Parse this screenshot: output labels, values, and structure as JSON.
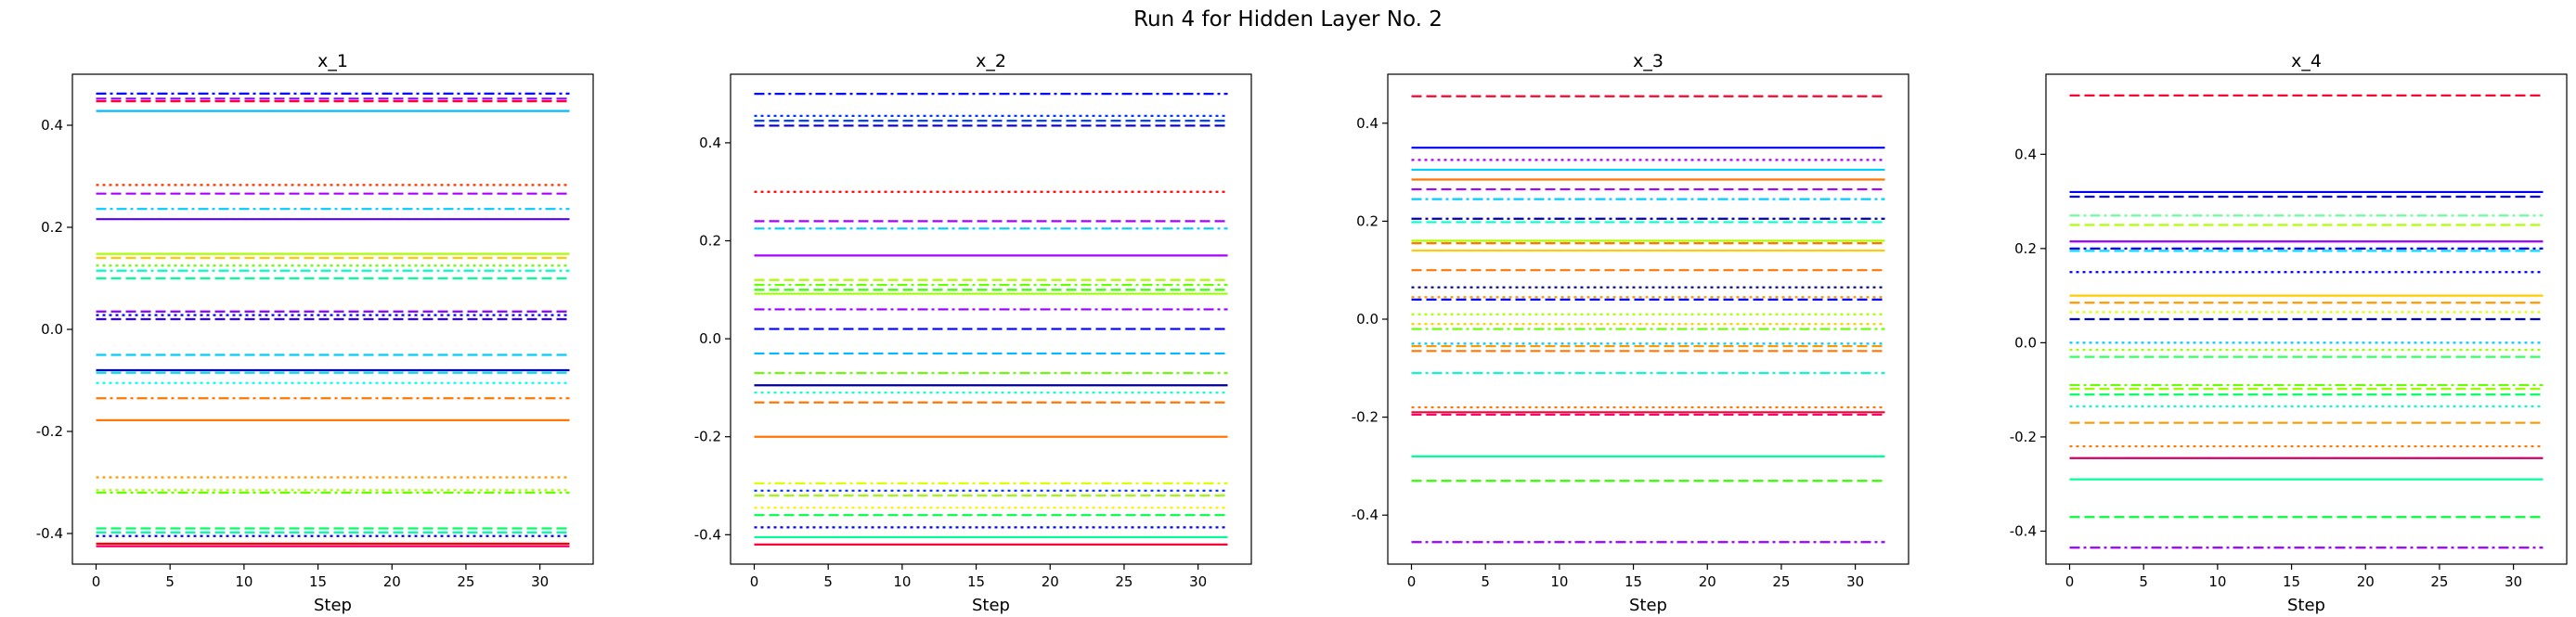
{
  "figure": {
    "suptitle": "Run 4 for Hidden Layer No. 2"
  },
  "chart_data": [
    {
      "type": "line",
      "title": "x_1",
      "xlabel": "Step",
      "ylabel": "",
      "xlim": [
        -1.6,
        33.6
      ],
      "ylim": [
        -0.46,
        0.5
      ],
      "x_ticks": [
        0,
        5,
        10,
        15,
        20,
        25,
        30
      ],
      "y_ticks": [
        -0.4,
        -0.2,
        0.0,
        0.2,
        0.4
      ],
      "x_range": [
        0,
        32
      ],
      "grid": false,
      "series": [
        {
          "y": 0.462,
          "color": "#0000ff",
          "dash": "dashdot"
        },
        {
          "y": 0.452,
          "color": "#9900ff",
          "dash": "dashed"
        },
        {
          "y": 0.447,
          "color": "#ff0033",
          "dash": "dashed"
        },
        {
          "y": 0.428,
          "color": "#00bbff",
          "dash": "solid"
        },
        {
          "y": 0.283,
          "color": "#ff3300",
          "dash": "dotted"
        },
        {
          "y": 0.266,
          "color": "#aa00ff",
          "dash": "dashed"
        },
        {
          "y": 0.236,
          "color": "#00ccff",
          "dash": "dashdot"
        },
        {
          "y": 0.216,
          "color": "#5500ff",
          "dash": "solid"
        },
        {
          "y": 0.148,
          "color": "#aaff00",
          "dash": "solid"
        },
        {
          "y": 0.14,
          "color": "#ffcc00",
          "dash": "dashed"
        },
        {
          "y": 0.125,
          "color": "#66ff00",
          "dash": "dotted"
        },
        {
          "y": 0.115,
          "color": "#00ffcc",
          "dash": "dashdot"
        },
        {
          "y": 0.1,
          "color": "#00ff99",
          "dash": "dashed"
        },
        {
          "y": 0.035,
          "color": "#8800ff",
          "dash": "dashed"
        },
        {
          "y": 0.028,
          "color": "#0000ff",
          "dash": "dotted"
        },
        {
          "y": 0.02,
          "color": "#3300ff",
          "dash": "dashed"
        },
        {
          "y": -0.05,
          "color": "#00ccff",
          "dash": "dashed"
        },
        {
          "y": -0.08,
          "color": "#0000aa",
          "dash": "solid"
        },
        {
          "y": -0.085,
          "color": "#00ddff",
          "dash": "dashed"
        },
        {
          "y": -0.105,
          "color": "#00ffee",
          "dash": "dotted"
        },
        {
          "y": -0.135,
          "color": "#ff7700",
          "dash": "dashdot"
        },
        {
          "y": -0.178,
          "color": "#ff7700",
          "dash": "solid"
        },
        {
          "y": -0.29,
          "color": "#ff9900",
          "dash": "dotted"
        },
        {
          "y": -0.315,
          "color": "#aaff00",
          "dash": "dotted"
        },
        {
          "y": -0.32,
          "color": "#66ff00",
          "dash": "dashdot"
        },
        {
          "y": -0.39,
          "color": "#00ff66",
          "dash": "dashed"
        },
        {
          "y": -0.398,
          "color": "#00ffaa",
          "dash": "dashed"
        },
        {
          "y": -0.405,
          "color": "#0000ff",
          "dash": "dotted"
        },
        {
          "y": -0.42,
          "color": "#ff0000",
          "dash": "solid"
        },
        {
          "y": -0.425,
          "color": "#ff0066",
          "dash": "solid"
        }
      ]
    },
    {
      "type": "line",
      "title": "x_2",
      "xlabel": "Step",
      "ylabel": "",
      "xlim": [
        -1.6,
        33.6
      ],
      "ylim": [
        -0.46,
        0.54
      ],
      "x_ticks": [
        0,
        5,
        10,
        15,
        20,
        25,
        30
      ],
      "y_ticks": [
        -0.4,
        -0.2,
        0.0,
        0.2,
        0.4
      ],
      "x_range": [
        0,
        32
      ],
      "grid": false,
      "series": [
        {
          "y": 0.5,
          "color": "#0000ff",
          "dash": "dashdot"
        },
        {
          "y": 0.455,
          "color": "#0033ff",
          "dash": "dotted"
        },
        {
          "y": 0.445,
          "color": "#0044ff",
          "dash": "dashed"
        },
        {
          "y": 0.435,
          "color": "#0000cc",
          "dash": "dashed"
        },
        {
          "y": 0.3,
          "color": "#ff0000",
          "dash": "dotted"
        },
        {
          "y": 0.24,
          "color": "#aa00ff",
          "dash": "dashed"
        },
        {
          "y": 0.225,
          "color": "#00ccff",
          "dash": "dashdot"
        },
        {
          "y": 0.17,
          "color": "#aa00ff",
          "dash": "solid"
        },
        {
          "y": 0.12,
          "color": "#aaff00",
          "dash": "dashed"
        },
        {
          "y": 0.11,
          "color": "#66ff00",
          "dash": "dashdot"
        },
        {
          "y": 0.1,
          "color": "#33ff00",
          "dash": "dashed"
        },
        {
          "y": 0.092,
          "color": "#99ff00",
          "dash": "solid"
        },
        {
          "y": 0.06,
          "color": "#9900ff",
          "dash": "dashdot"
        },
        {
          "y": 0.02,
          "color": "#0000ff",
          "dash": "dashed"
        },
        {
          "y": -0.03,
          "color": "#00bbff",
          "dash": "dashed"
        },
        {
          "y": -0.07,
          "color": "#66ff00",
          "dash": "dashdot"
        },
        {
          "y": -0.095,
          "color": "#000099",
          "dash": "solid"
        },
        {
          "y": -0.11,
          "color": "#00ffcc",
          "dash": "dotted"
        },
        {
          "y": -0.13,
          "color": "#ff7700",
          "dash": "dashed"
        },
        {
          "y": -0.2,
          "color": "#ff7700",
          "dash": "solid"
        },
        {
          "y": -0.295,
          "color": "#ddff00",
          "dash": "dashdot"
        },
        {
          "y": -0.31,
          "color": "#0033ff",
          "dash": "dotted"
        },
        {
          "y": -0.32,
          "color": "#99ff00",
          "dash": "dashed"
        },
        {
          "y": -0.345,
          "color": "#ffee00",
          "dash": "dotted"
        },
        {
          "y": -0.36,
          "color": "#00ff44",
          "dash": "dashed"
        },
        {
          "y": -0.385,
          "color": "#0000ff",
          "dash": "dotted"
        },
        {
          "y": -0.405,
          "color": "#00ff99",
          "dash": "solid"
        },
        {
          "y": -0.42,
          "color": "#ff0033",
          "dash": "solid"
        }
      ]
    },
    {
      "type": "line",
      "title": "x_3",
      "xlabel": "Step",
      "ylabel": "",
      "xlim": [
        -1.6,
        33.6
      ],
      "ylim": [
        -0.5,
        0.5
      ],
      "x_ticks": [
        0,
        5,
        10,
        15,
        20,
        25,
        30
      ],
      "y_ticks": [
        -0.4,
        -0.2,
        0.0,
        0.2,
        0.4
      ],
      "x_range": [
        0,
        32
      ],
      "grid": false,
      "series": [
        {
          "y": 0.455,
          "color": "#ff0033",
          "dash": "dashed"
        },
        {
          "y": 0.35,
          "color": "#0000ff",
          "dash": "solid"
        },
        {
          "y": 0.325,
          "color": "#aa00ff",
          "dash": "dotted"
        },
        {
          "y": 0.305,
          "color": "#00ccff",
          "dash": "solid"
        },
        {
          "y": 0.285,
          "color": "#ff7700",
          "dash": "solid"
        },
        {
          "y": 0.265,
          "color": "#aa00ff",
          "dash": "dashed"
        },
        {
          "y": 0.245,
          "color": "#00ccff",
          "dash": "dashdot"
        },
        {
          "y": 0.205,
          "color": "#0000aa",
          "dash": "dashdot"
        },
        {
          "y": 0.198,
          "color": "#00ffcc",
          "dash": "dashed"
        },
        {
          "y": 0.16,
          "color": "#aaff00",
          "dash": "solid"
        },
        {
          "y": 0.155,
          "color": "#ff7700",
          "dash": "dashed"
        },
        {
          "y": 0.14,
          "color": "#ffcc00",
          "dash": "solid"
        },
        {
          "y": 0.1,
          "color": "#ff7700",
          "dash": "dashed"
        },
        {
          "y": 0.065,
          "color": "#000088",
          "dash": "dotted"
        },
        {
          "y": 0.045,
          "color": "#ff9900",
          "dash": "dotted"
        },
        {
          "y": 0.04,
          "color": "#0000ff",
          "dash": "dashed"
        },
        {
          "y": 0.01,
          "color": "#aaff00",
          "dash": "dotted"
        },
        {
          "y": -0.01,
          "color": "#ffcc00",
          "dash": "dotted"
        },
        {
          "y": -0.02,
          "color": "#66ff00",
          "dash": "dashdot"
        },
        {
          "y": -0.05,
          "color": "#00ccff",
          "dash": "dotted"
        },
        {
          "y": -0.055,
          "color": "#ff9900",
          "dash": "dashed"
        },
        {
          "y": -0.065,
          "color": "#ff7700",
          "dash": "dashed"
        },
        {
          "y": -0.11,
          "color": "#00ffcc",
          "dash": "dashdot"
        },
        {
          "y": -0.18,
          "color": "#ff7700",
          "dash": "dotted"
        },
        {
          "y": -0.19,
          "color": "#ff0033",
          "dash": "solid"
        },
        {
          "y": -0.195,
          "color": "#ff0066",
          "dash": "dashed"
        },
        {
          "y": -0.28,
          "color": "#00ff99",
          "dash": "solid"
        },
        {
          "y": -0.33,
          "color": "#33ff00",
          "dash": "dashed"
        },
        {
          "y": -0.455,
          "color": "#9900ff",
          "dash": "dashdot"
        }
      ]
    },
    {
      "type": "line",
      "title": "x_4",
      "xlabel": "Step",
      "ylabel": "",
      "xlim": [
        -1.6,
        33.6
      ],
      "ylim": [
        -0.47,
        0.57
      ],
      "x_ticks": [
        0,
        5,
        10,
        15,
        20,
        25,
        30
      ],
      "y_ticks": [
        -0.4,
        -0.2,
        0.0,
        0.2,
        0.4
      ],
      "x_range": [
        0,
        32
      ],
      "grid": false,
      "series": [
        {
          "y": 0.525,
          "color": "#ff0033",
          "dash": "dashed"
        },
        {
          "y": 0.32,
          "color": "#0000ff",
          "dash": "solid"
        },
        {
          "y": 0.31,
          "color": "#0000ff",
          "dash": "dashed"
        },
        {
          "y": 0.27,
          "color": "#66ff99",
          "dash": "dashdot"
        },
        {
          "y": 0.25,
          "color": "#aaff00",
          "dash": "dashed"
        },
        {
          "y": 0.215,
          "color": "#9900ff",
          "dash": "solid"
        },
        {
          "y": 0.2,
          "color": "#0000ff",
          "dash": "dashdot"
        },
        {
          "y": 0.195,
          "color": "#00ddff",
          "dash": "dashed"
        },
        {
          "y": 0.15,
          "color": "#0000ff",
          "dash": "dotted"
        },
        {
          "y": 0.1,
          "color": "#ffcc00",
          "dash": "solid"
        },
        {
          "y": 0.085,
          "color": "#ff9900",
          "dash": "dashed"
        },
        {
          "y": 0.065,
          "color": "#ddff00",
          "dash": "dotted"
        },
        {
          "y": 0.05,
          "color": "#0000cc",
          "dash": "dashed"
        },
        {
          "y": 0.0,
          "color": "#00ccff",
          "dash": "dotted"
        },
        {
          "y": -0.015,
          "color": "#99ff00",
          "dash": "dotted"
        },
        {
          "y": -0.03,
          "color": "#33ff66",
          "dash": "dashed"
        },
        {
          "y": -0.09,
          "color": "#66ff00",
          "dash": "dashdot"
        },
        {
          "y": -0.098,
          "color": "#99ff00",
          "dash": "dashed"
        },
        {
          "y": -0.11,
          "color": "#00ff66",
          "dash": "dashed"
        },
        {
          "y": -0.135,
          "color": "#00ffcc",
          "dash": "dotted"
        },
        {
          "y": -0.17,
          "color": "#ff9900",
          "dash": "dashed"
        },
        {
          "y": -0.22,
          "color": "#ff7700",
          "dash": "dotted"
        },
        {
          "y": -0.245,
          "color": "#cc0066",
          "dash": "solid"
        },
        {
          "y": -0.29,
          "color": "#00ff99",
          "dash": "solid"
        },
        {
          "y": -0.37,
          "color": "#00ff33",
          "dash": "dashed"
        },
        {
          "y": -0.435,
          "color": "#9900ff",
          "dash": "dashdot"
        }
      ]
    }
  ]
}
